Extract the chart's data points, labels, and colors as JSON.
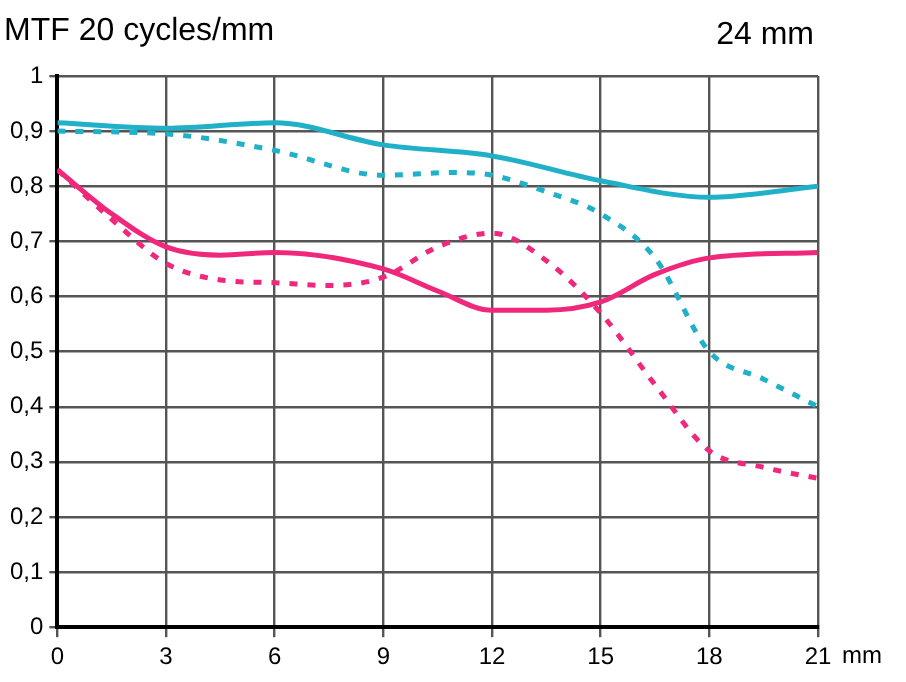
{
  "chart_data": {
    "type": "line",
    "title": "MTF 20 cycles/mm",
    "annotations": [
      "24 mm"
    ],
    "xlabel": "mm",
    "xlim": [
      0,
      21
    ],
    "xticks": [
      0,
      3,
      6,
      9,
      12,
      15,
      18,
      21
    ],
    "ylim": [
      0,
      1
    ],
    "yticks": [
      0,
      {
        "value": 0.1,
        "label": "0,1"
      },
      {
        "value": 0.2,
        "label": "0,2"
      },
      {
        "value": 0.3,
        "label": "0,3"
      },
      {
        "value": 0.4,
        "label": "0,4"
      },
      {
        "value": 0.5,
        "label": "0,5"
      },
      {
        "value": 0.6,
        "label": "0,6"
      },
      {
        "value": 0.7,
        "label": "0,7"
      },
      {
        "value": 0.8,
        "label": "0,8"
      },
      {
        "value": 0.9,
        "label": "0,9"
      },
      1
    ],
    "grid": true,
    "legend": false,
    "marker": "none",
    "series": [
      {
        "color": "#20b0c8",
        "line_style": "solid",
        "x": [
          0,
          3,
          6,
          9,
          12,
          15,
          18,
          21
        ],
        "values": [
          0.915,
          0.905,
          0.915,
          0.875,
          0.855,
          0.81,
          0.78,
          0.8
        ]
      },
      {
        "color": "#20b0c8",
        "line_style": "dashed",
        "x": [
          0,
          3,
          6,
          9,
          11,
          12,
          13.5,
          15,
          16.5,
          18,
          19.5,
          21
        ],
        "values": [
          0.9,
          0.895,
          0.865,
          0.82,
          0.825,
          0.82,
          0.79,
          0.75,
          0.67,
          0.5,
          0.45,
          0.4
        ]
      },
      {
        "color": "#f0287c",
        "line_style": "solid",
        "x": [
          0,
          1.5,
          3,
          4.5,
          6,
          9,
          10.5,
          12,
          13.5,
          15,
          16.5,
          18,
          21
        ],
        "values": [
          0.83,
          0.75,
          0.69,
          0.675,
          0.68,
          0.65,
          0.61,
          0.575,
          0.575,
          0.59,
          0.64,
          0.67,
          0.68
        ]
      },
      {
        "color": "#f0287c",
        "line_style": "dashed",
        "x": [
          0,
          1.5,
          3,
          4.5,
          6,
          7.5,
          9,
          10.5,
          12,
          13.5,
          15,
          16.5,
          18,
          19.5,
          21
        ],
        "values": [
          0.83,
          0.74,
          0.66,
          0.63,
          0.625,
          0.62,
          0.635,
          0.69,
          0.715,
          0.665,
          0.57,
          0.44,
          0.32,
          0.29,
          0.27
        ]
      }
    ]
  }
}
